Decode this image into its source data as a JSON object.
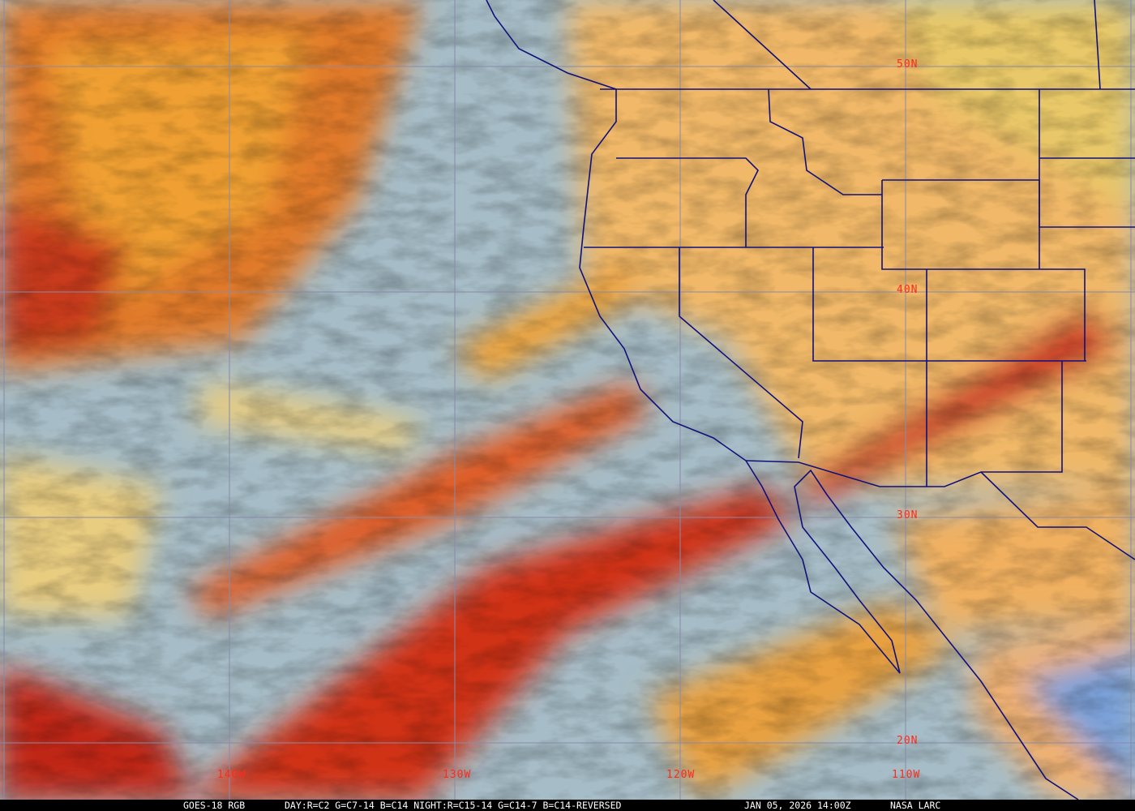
{
  "caption": {
    "satellite": "GOES-18 RGB",
    "recipe": "DAY:R=C2 G=C7-14 B=C14 NIGHT:R=C15-14 G=C14-7 B=C14-REVERSED",
    "datetime": "JAN 05, 2026 14:00Z",
    "source": "NASA LARC"
  },
  "grid_labels": {
    "lat": [
      "50N",
      "40N",
      "30N",
      "20N"
    ],
    "lon": [
      "140W",
      "130W",
      "120W",
      "110W"
    ]
  },
  "colors": {
    "ocean_clear": "#9fb8c4",
    "low_cloud": "#e8c070",
    "high_cloud": "#d02818",
    "land": "#f0b070",
    "gridline": "#8a8aa8",
    "boundary": "#10107a",
    "label": "#ff2a1a"
  }
}
